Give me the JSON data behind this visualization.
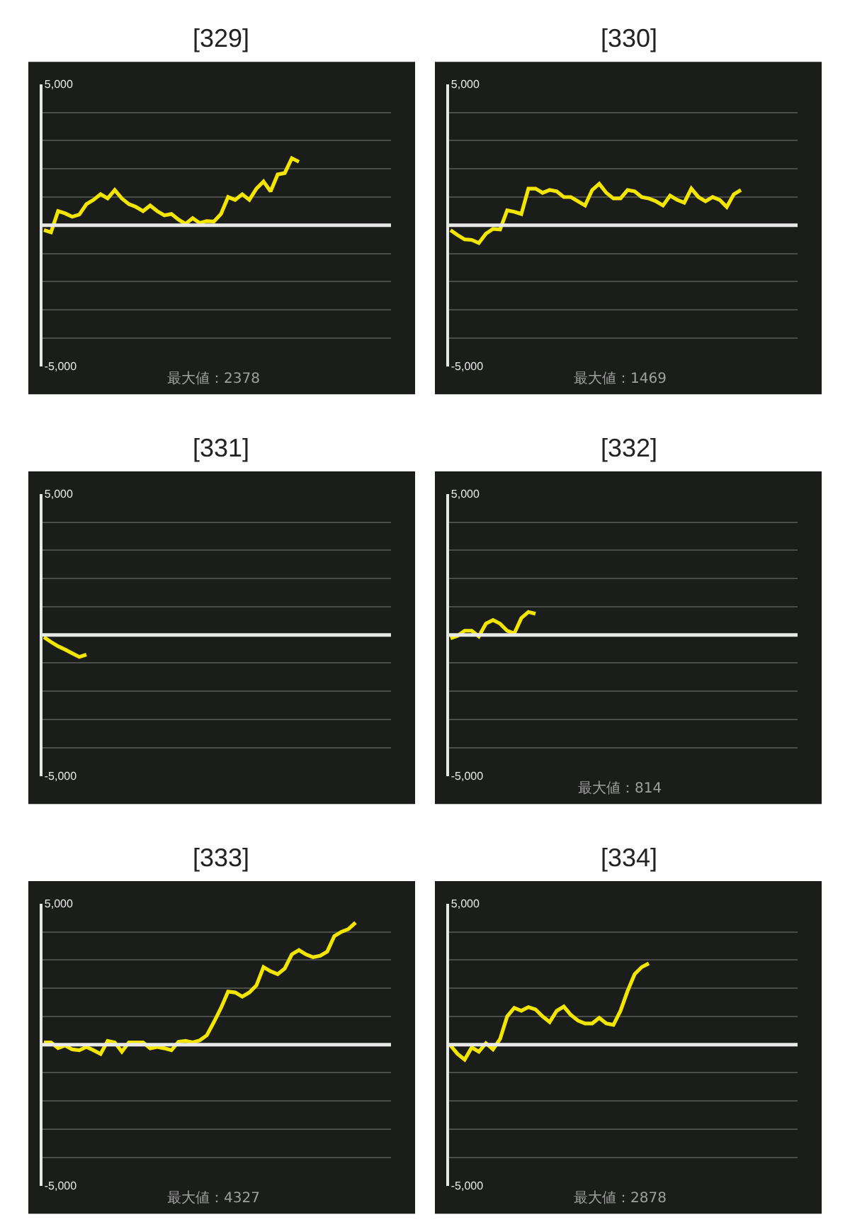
{
  "chart_data": [
    {
      "type": "line",
      "title": "[329]",
      "categories": [
        null,
        null,
        null,
        null,
        null,
        null,
        null,
        null,
        null,
        null,
        null,
        null,
        null,
        null,
        null,
        null,
        null,
        null,
        null,
        null,
        null,
        null,
        null,
        null,
        null,
        null,
        null,
        null,
        null,
        null,
        null,
        null,
        null,
        null,
        null,
        null,
        null,
        null,
        null,
        null,
        null,
        null,
        null,
        null,
        null,
        null,
        null,
        null,
        null,
        null
      ],
      "series": [
        {
          "color": "#f2e600",
          "values": [
            -170,
            -250,
            500,
            420,
            300,
            380,
            750,
            900,
            1100,
            950,
            1250,
            950,
            750,
            650,
            500,
            700,
            500,
            350,
            400,
            200,
            50,
            250,
            80,
            150,
            130,
            400,
            1000,
            900,
            1100,
            900,
            1300,
            1550,
            1200,
            1800,
            1850,
            2378,
            2250,
            null,
            null,
            null,
            null,
            null,
            null,
            null,
            null,
            null,
            null,
            null,
            null,
            null
          ]
        }
      ],
      "ylim": [
        -5000,
        5000
      ],
      "yticks": [
        {
          "value": 5000,
          "label": "5,000"
        },
        {
          "value": 4000,
          "label": null
        },
        {
          "value": 3000,
          "label": null
        },
        {
          "value": 2000,
          "label": null
        },
        {
          "value": 1000,
          "label": null
        },
        {
          "value": -1000,
          "label": null
        },
        {
          "value": -2000,
          "label": null
        },
        {
          "value": -3000,
          "label": null
        },
        {
          "value": -4000,
          "label": null
        },
        {
          "value": -5000,
          "label": "-5,000"
        }
      ],
      "ref_lines": [
        {
          "axis": "y",
          "value": 0,
          "color": "#e8e8e8"
        }
      ],
      "annotations": [
        "最大値：2378"
      ],
      "grid": "y",
      "tick_labels": "y"
    },
    {
      "type": "line",
      "title": "[330]",
      "categories": [
        null,
        null,
        null,
        null,
        null,
        null,
        null,
        null,
        null,
        null,
        null,
        null,
        null,
        null,
        null,
        null,
        null,
        null,
        null,
        null,
        null,
        null,
        null,
        null,
        null,
        null,
        null,
        null,
        null,
        null,
        null,
        null,
        null,
        null,
        null,
        null,
        null,
        null,
        null,
        null,
        null,
        null,
        null,
        null,
        null,
        null,
        null,
        null,
        null,
        null
      ],
      "series": [
        {
          "color": "#f2e600",
          "values": [
            -170,
            -350,
            -500,
            -520,
            -630,
            -300,
            -130,
            -150,
            530,
            480,
            400,
            1300,
            1300,
            1150,
            1250,
            1200,
            1000,
            1000,
            850,
            700,
            1250,
            1469,
            1150,
            950,
            950,
            1250,
            1200,
            1000,
            950,
            850,
            700,
            1050,
            900,
            800,
            1300,
            1000,
            850,
            1000,
            900,
            650,
            1100,
            1250,
            null,
            null,
            null,
            null,
            null,
            null,
            null,
            null
          ]
        }
      ],
      "ylim": [
        -5000,
        5000
      ],
      "yticks": [
        {
          "value": 5000,
          "label": "5,000"
        },
        {
          "value": 4000,
          "label": null
        },
        {
          "value": 3000,
          "label": null
        },
        {
          "value": 2000,
          "label": null
        },
        {
          "value": 1000,
          "label": null
        },
        {
          "value": -1000,
          "label": null
        },
        {
          "value": -2000,
          "label": null
        },
        {
          "value": -3000,
          "label": null
        },
        {
          "value": -4000,
          "label": null
        },
        {
          "value": -5000,
          "label": "-5,000"
        }
      ],
      "ref_lines": [
        {
          "axis": "y",
          "value": 0,
          "color": "#e8e8e8"
        }
      ],
      "annotations": [
        "最大値：1469"
      ],
      "grid": "y",
      "tick_labels": "y"
    },
    {
      "type": "line",
      "title": "[331]",
      "categories": [
        null,
        null,
        null,
        null,
        null,
        null,
        null,
        null,
        null,
        null,
        null,
        null,
        null,
        null,
        null,
        null,
        null,
        null,
        null,
        null,
        null,
        null,
        null,
        null,
        null,
        null,
        null,
        null,
        null,
        null,
        null,
        null,
        null,
        null,
        null,
        null,
        null,
        null,
        null,
        null,
        null,
        null,
        null,
        null,
        null,
        null,
        null,
        null,
        null,
        null
      ],
      "series": [
        {
          "color": "#f2e600",
          "values": [
            -80,
            -250,
            -400,
            -520,
            -650,
            -780,
            -700,
            null,
            null,
            null,
            null,
            null,
            null,
            null,
            null,
            null,
            null,
            null,
            null,
            null,
            null,
            null,
            null,
            null,
            null,
            null,
            null,
            null,
            null,
            null,
            null,
            null,
            null,
            null,
            null,
            null,
            null,
            null,
            null,
            null,
            null,
            null,
            null,
            null,
            null,
            null,
            null,
            null,
            null,
            null
          ]
        }
      ],
      "ylim": [
        -5000,
        5000
      ],
      "yticks": [
        {
          "value": 5000,
          "label": "5,000"
        },
        {
          "value": 4000,
          "label": null
        },
        {
          "value": 3000,
          "label": null
        },
        {
          "value": 2000,
          "label": null
        },
        {
          "value": 1000,
          "label": null
        },
        {
          "value": -1000,
          "label": null
        },
        {
          "value": -2000,
          "label": null
        },
        {
          "value": -3000,
          "label": null
        },
        {
          "value": -4000,
          "label": null
        },
        {
          "value": -5000,
          "label": "-5,000"
        }
      ],
      "ref_lines": [
        {
          "axis": "y",
          "value": 0,
          "color": "#e8e8e8"
        }
      ],
      "grid": "y",
      "tick_labels": "y"
    },
    {
      "type": "line",
      "title": "[332]",
      "categories": [
        null,
        null,
        null,
        null,
        null,
        null,
        null,
        null,
        null,
        null,
        null,
        null,
        null,
        null,
        null,
        null,
        null,
        null,
        null,
        null,
        null,
        null,
        null,
        null,
        null,
        null,
        null,
        null,
        null,
        null,
        null,
        null,
        null,
        null,
        null,
        null,
        null,
        null,
        null,
        null,
        null,
        null,
        null,
        null,
        null,
        null,
        null,
        null,
        null,
        null
      ],
      "series": [
        {
          "color": "#f2e600",
          "values": [
            -120,
            -30,
            150,
            150,
            -50,
            400,
            530,
            400,
            150,
            50,
            600,
            814,
            750,
            null,
            null,
            null,
            null,
            null,
            null,
            null,
            null,
            null,
            null,
            null,
            null,
            null,
            null,
            null,
            null,
            null,
            null,
            null,
            null,
            null,
            null,
            null,
            null,
            null,
            null,
            null,
            null,
            null,
            null,
            null,
            null,
            null,
            null,
            null,
            null,
            null
          ]
        }
      ],
      "ylim": [
        -5000,
        5000
      ],
      "yticks": [
        {
          "value": 5000,
          "label": "5,000"
        },
        {
          "value": 4000,
          "label": null
        },
        {
          "value": 3000,
          "label": null
        },
        {
          "value": 2000,
          "label": null
        },
        {
          "value": 1000,
          "label": null
        },
        {
          "value": -1000,
          "label": null
        },
        {
          "value": -2000,
          "label": null
        },
        {
          "value": -3000,
          "label": null
        },
        {
          "value": -4000,
          "label": null
        },
        {
          "value": -5000,
          "label": "-5,000"
        }
      ],
      "ref_lines": [
        {
          "axis": "y",
          "value": 0,
          "color": "#e8e8e8"
        }
      ],
      "annotations": [
        "最大値：814"
      ],
      "grid": "y",
      "tick_labels": "y"
    },
    {
      "type": "line",
      "title": "[333]",
      "categories": [
        null,
        null,
        null,
        null,
        null,
        null,
        null,
        null,
        null,
        null,
        null,
        null,
        null,
        null,
        null,
        null,
        null,
        null,
        null,
        null,
        null,
        null,
        null,
        null,
        null,
        null,
        null,
        null,
        null,
        null,
        null,
        null,
        null,
        null,
        null,
        null,
        null,
        null,
        null,
        null,
        null,
        null,
        null,
        null,
        null,
        null,
        null,
        null,
        null,
        null
      ],
      "series": [
        {
          "color": "#f2e600",
          "values": [
            80,
            80,
            -120,
            -30,
            -170,
            -200,
            -80,
            -200,
            -330,
            130,
            80,
            -250,
            80,
            80,
            80,
            -130,
            -80,
            -130,
            -200,
            100,
            130,
            80,
            150,
            330,
            800,
            1300,
            1880,
            1850,
            1700,
            1850,
            2100,
            2750,
            2600,
            2500,
            2700,
            3200,
            3350,
            3200,
            3100,
            3150,
            3300,
            3850,
            4000,
            4100,
            4327,
            null,
            null,
            null,
            null,
            null
          ]
        }
      ],
      "ylim": [
        -5000,
        5000
      ],
      "yticks": [
        {
          "value": 5000,
          "label": "5,000"
        },
        {
          "value": 4000,
          "label": null
        },
        {
          "value": 3000,
          "label": null
        },
        {
          "value": 2000,
          "label": null
        },
        {
          "value": 1000,
          "label": null
        },
        {
          "value": -1000,
          "label": null
        },
        {
          "value": -2000,
          "label": null
        },
        {
          "value": -3000,
          "label": null
        },
        {
          "value": -4000,
          "label": null
        },
        {
          "value": -5000,
          "label": "-5,000"
        }
      ],
      "ref_lines": [
        {
          "axis": "y",
          "value": 0,
          "color": "#e8e8e8"
        }
      ],
      "annotations": [
        "最大値：4327"
      ],
      "grid": "y",
      "tick_labels": "y"
    },
    {
      "type": "line",
      "title": "[334]",
      "categories": [
        null,
        null,
        null,
        null,
        null,
        null,
        null,
        null,
        null,
        null,
        null,
        null,
        null,
        null,
        null,
        null,
        null,
        null,
        null,
        null,
        null,
        null,
        null,
        null,
        null,
        null,
        null,
        null,
        null,
        null,
        null,
        null,
        null,
        null,
        null,
        null,
        null,
        null,
        null,
        null,
        null,
        null,
        null,
        null,
        null,
        null,
        null,
        null,
        null,
        null
      ],
      "series": [
        {
          "color": "#f2e600",
          "values": [
            -30,
            -330,
            -530,
            -100,
            -250,
            50,
            -170,
            200,
            1000,
            1300,
            1200,
            1330,
            1250,
            1000,
            800,
            1200,
            1350,
            1050,
            850,
            750,
            750,
            950,
            750,
            700,
            1200,
            1900,
            2500,
            2750,
            2878,
            null,
            null,
            null,
            null,
            null,
            null,
            null,
            null,
            null,
            null,
            null,
            null,
            null,
            null,
            null,
            null,
            null,
            null,
            null,
            null,
            null
          ]
        }
      ],
      "ylim": [
        -5000,
        5000
      ],
      "yticks": [
        {
          "value": 5000,
          "label": "5,000"
        },
        {
          "value": 4000,
          "label": null
        },
        {
          "value": 3000,
          "label": null
        },
        {
          "value": 2000,
          "label": null
        },
        {
          "value": 1000,
          "label": null
        },
        {
          "value": -1000,
          "label": null
        },
        {
          "value": -2000,
          "label": null
        },
        {
          "value": -3000,
          "label": null
        },
        {
          "value": -4000,
          "label": null
        },
        {
          "value": -5000,
          "label": "-5,000"
        }
      ],
      "ref_lines": [
        {
          "axis": "y",
          "value": 0,
          "color": "#e8e8e8"
        }
      ],
      "annotations": [
        "最大値：2878"
      ],
      "grid": "y",
      "tick_labels": "y"
    }
  ]
}
